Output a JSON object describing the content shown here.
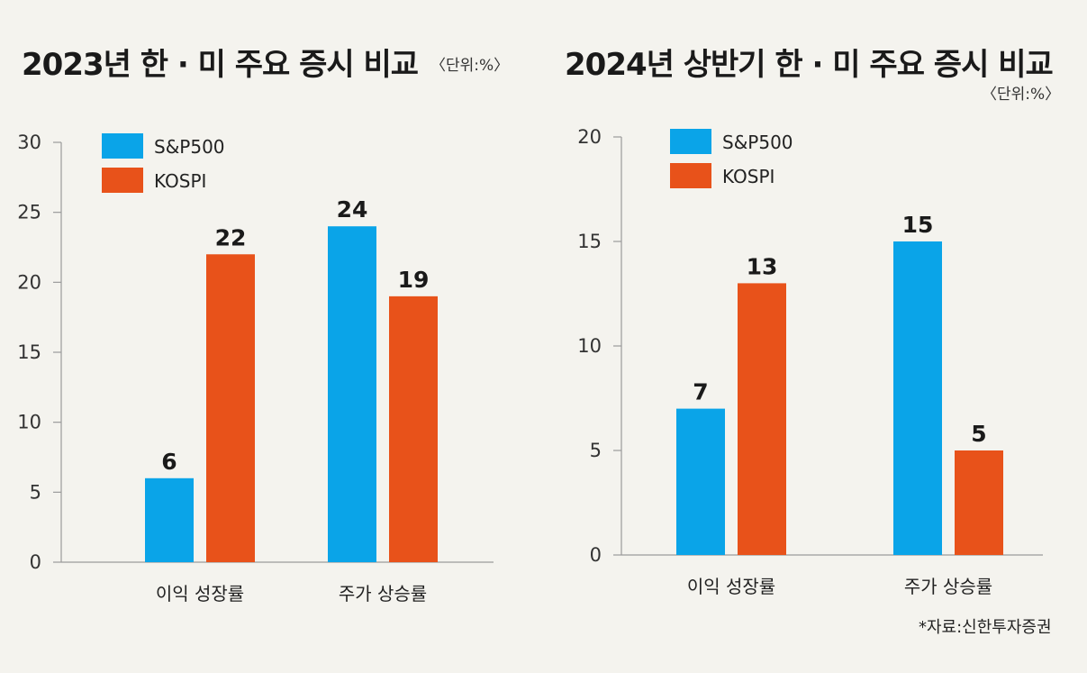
{
  "colors": {
    "sp500": "#0aa4e8",
    "kospi": "#e8521a",
    "axis": "#9a9a9a",
    "background": "#f4f3ee"
  },
  "chart_data": [
    {
      "type": "bar",
      "title": "2023년 한 · 미 주요 증시 비교",
      "unit": "〈단위:%〉",
      "categories": [
        "이익 성장률",
        "주가 상승률"
      ],
      "series": [
        {
          "name": "S&P500",
          "values": [
            6,
            24
          ]
        },
        {
          "name": "KOSPI",
          "values": [
            22,
            19
          ]
        }
      ],
      "value_labels": [
        [
          "6",
          "24"
        ],
        [
          "22",
          "19"
        ]
      ],
      "ylim": [
        0,
        30
      ],
      "yticks": [
        0,
        5,
        10,
        15,
        20,
        25,
        30
      ],
      "grid": false,
      "legend": "top-left",
      "xlabel": "",
      "ylabel": ""
    },
    {
      "type": "bar",
      "title": "2024년 상반기 한 · 미 주요 증시 비교",
      "unit": "〈단위:%〉",
      "categories": [
        "이익 성장률",
        "주가 상승률"
      ],
      "series": [
        {
          "name": "S&P500",
          "values": [
            7,
            15
          ]
        },
        {
          "name": "KOSPI",
          "values": [
            13,
            5
          ]
        }
      ],
      "value_labels": [
        [
          "7",
          "15"
        ],
        [
          "13",
          "5"
        ]
      ],
      "ylim": [
        0,
        20
      ],
      "yticks": [
        0,
        5,
        10,
        15,
        20
      ],
      "grid": false,
      "legend": "top-left",
      "xlabel": "",
      "ylabel": ""
    }
  ],
  "source": "*자료:신한투자증권"
}
